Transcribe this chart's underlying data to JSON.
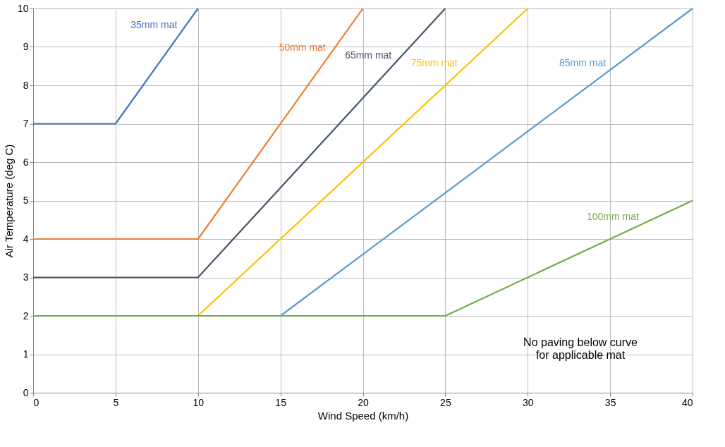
{
  "chart_data": {
    "type": "line",
    "xlabel": "Wind Speed (km/h)",
    "ylabel": "Air Temperature (deg C)",
    "xlim": [
      0,
      40
    ],
    "ylim": [
      0,
      10
    ],
    "xticks": [
      0,
      5,
      10,
      15,
      20,
      25,
      30,
      35,
      40
    ],
    "yticks": [
      0,
      1,
      2,
      3,
      4,
      5,
      6,
      7,
      8,
      9,
      10
    ],
    "grid": true,
    "legend": false,
    "marker": "none",
    "line_style": "solid",
    "series": [
      {
        "name": "35mm mat",
        "color": "#4472c4",
        "x": [
          0,
          5,
          10
        ],
        "values": [
          7,
          7,
          10
        ]
      },
      {
        "name": "50mm mat",
        "color": "#ed7d31",
        "x": [
          0,
          10,
          20
        ],
        "values": [
          4,
          4,
          10
        ]
      },
      {
        "name": "65mm mat",
        "color": "#44546a",
        "x": [
          0,
          10,
          25
        ],
        "values": [
          3,
          3,
          10
        ]
      },
      {
        "name": "75mm mat",
        "color": "#ffc000",
        "x": [
          10,
          30
        ],
        "values": [
          2,
          10
        ]
      },
      {
        "name": "85mm mat",
        "color": "#5b9bd5",
        "x": [
          15,
          40
        ],
        "values": [
          2,
          10
        ]
      },
      {
        "name": "100mm mat",
        "color": "#70ad47",
        "x": [
          0,
          25,
          40
        ],
        "values": [
          2,
          2,
          5
        ]
      }
    ],
    "annotations": [
      "No paving below curve\nfor applicable mat"
    ]
  }
}
